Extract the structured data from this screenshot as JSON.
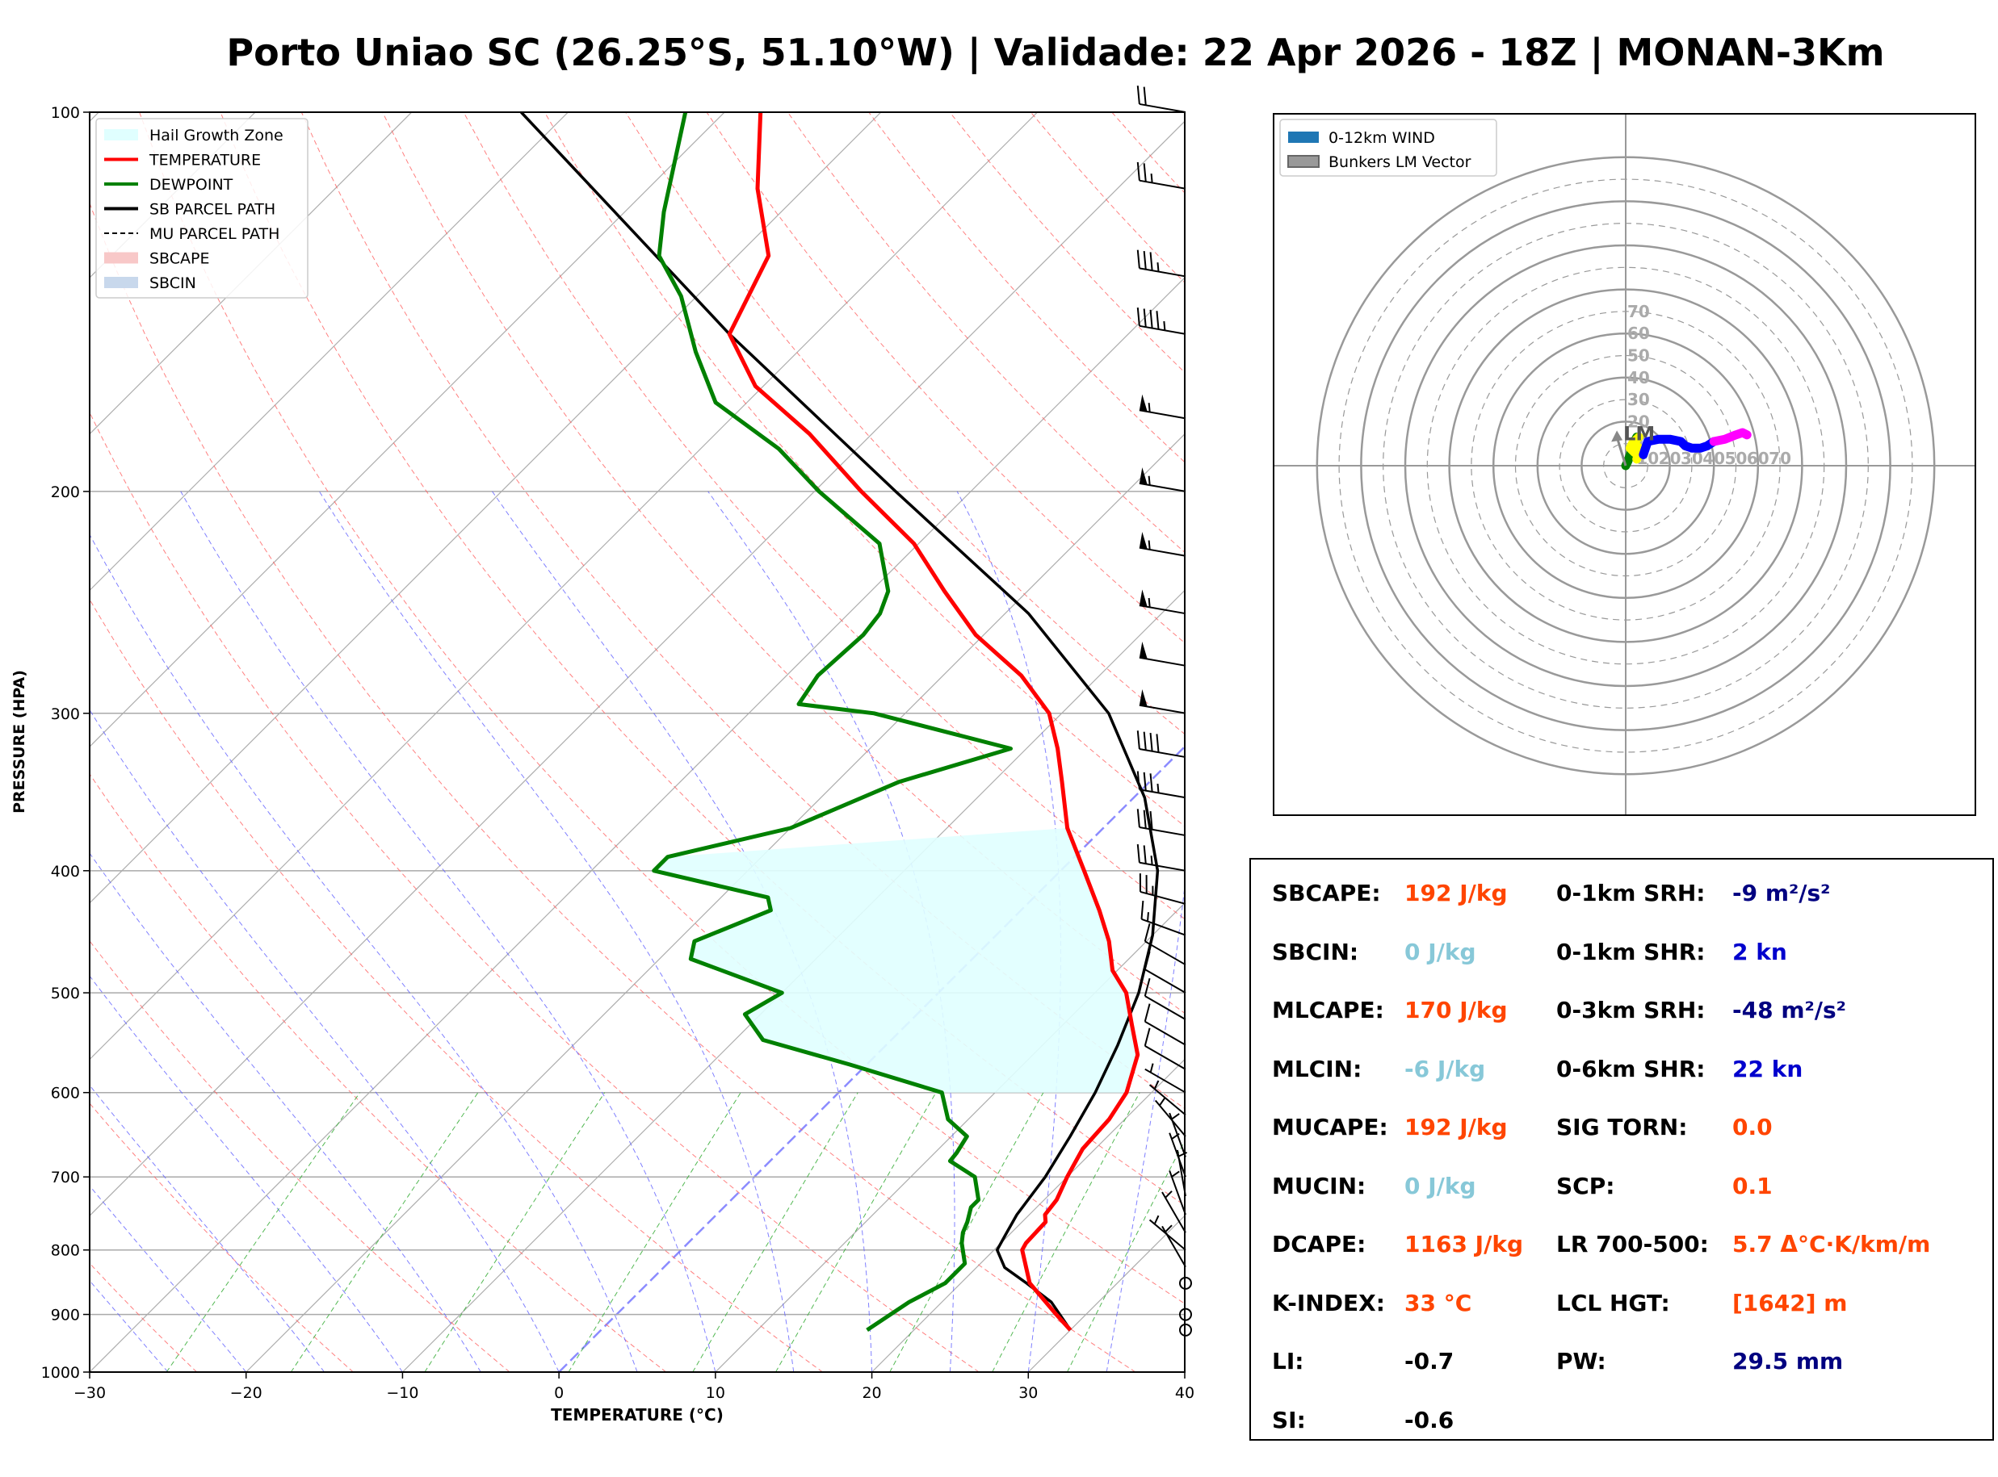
{
  "title": "Porto Uniao SC (26.25°S, 51.10°W) | Validade: 22 Apr 2026 - 18Z | MONAN-3Km",
  "colors": {
    "temperature": "#ff0000",
    "dewpoint": "#008000",
    "parcel": "#000000",
    "hail_zone": "#e0ffff",
    "dry_adiabat": "#ff6060",
    "moist_adiabat": "#6060ff",
    "mixing_ratio": "#40b040",
    "isotherm": "#999999",
    "freezing_line": "#8080ff",
    "value_orange": "#ff4500",
    "value_lightblue": "#87c8d8",
    "value_navy": "#000080",
    "value_blue": "#0000cd",
    "value_black": "#000000"
  },
  "skewt": {
    "xlabel": "TEMPERATURE (°C)",
    "ylabel": "PRESSURE (HPA)",
    "legend": [
      {
        "label": "Hail Growth Zone",
        "style": "fill",
        "color": "#e0ffff"
      },
      {
        "label": "TEMPERATURE",
        "style": "line",
        "color": "#ff0000"
      },
      {
        "label": "DEWPOINT",
        "style": "line",
        "color": "#008000"
      },
      {
        "label": "SB PARCEL PATH",
        "style": "line",
        "color": "#000000"
      },
      {
        "label": "MU PARCEL PATH",
        "style": "dash",
        "color": "#000000"
      },
      {
        "label": "SBCAPE",
        "style": "fill",
        "color": "#f8c8c8"
      },
      {
        "label": "SBCIN",
        "style": "fill",
        "color": "#c8d8ec"
      }
    ]
  },
  "hodograph": {
    "legend": [
      {
        "label": "0-12km WIND",
        "color": "#1f77b4"
      },
      {
        "label": "Bunkers LM Vector",
        "color": "#999999"
      }
    ],
    "ring_labels": [
      "10",
      "20",
      "30",
      "40",
      "50",
      "60",
      "70"
    ],
    "lm_label": "LM"
  },
  "params": {
    "left": [
      {
        "label": "SBCAPE:",
        "value": "192 J/kg",
        "color": "#ff4500"
      },
      {
        "label": "SBCIN:",
        "value": "0 J/kg",
        "color": "#87c8d8"
      },
      {
        "label": "MLCAPE:",
        "value": "170 J/kg",
        "color": "#ff4500"
      },
      {
        "label": "MLCIN:",
        "value": "-6 J/kg",
        "color": "#87c8d8"
      },
      {
        "label": "MUCAPE:",
        "value": "192 J/kg",
        "color": "#ff4500"
      },
      {
        "label": "MUCIN:",
        "value": "0 J/kg",
        "color": "#87c8d8"
      },
      {
        "label": "DCAPE:",
        "value": "1163 J/kg",
        "color": "#ff4500"
      },
      {
        "label": "K-INDEX:",
        "value": "33 °C",
        "color": "#ff4500"
      },
      {
        "label": "LI:",
        "value": "-0.7",
        "color": "#000000"
      },
      {
        "label": "SI:",
        "value": "-0.6",
        "color": "#000000"
      }
    ],
    "right": [
      {
        "label": "0-1km SRH:",
        "value": "-9 m²/s²",
        "color": "#000080"
      },
      {
        "label": "0-1km SHR:",
        "value": "2 kn",
        "color": "#0000cd"
      },
      {
        "label": "0-3km SRH:",
        "value": "-48 m²/s²",
        "color": "#000080"
      },
      {
        "label": "0-6km SHR:",
        "value": "22 kn",
        "color": "#0000cd"
      },
      {
        "label": "SIG TORN:",
        "value": "0.0",
        "color": "#ff4500"
      },
      {
        "label": "SCP:",
        "value": "0.1",
        "color": "#ff4500"
      },
      {
        "label": "LR 700-500:",
        "value": "5.7 Δ°C·K/km/m",
        "color": "#ff4500"
      },
      {
        "label": "LCL HGT:",
        "value": "[1642] m",
        "color": "#ff4500"
      },
      {
        "label": "PW:",
        "value": "29.5 mm",
        "color": "#000080"
      }
    ]
  },
  "chart_data": [
    {
      "type": "line",
      "title": "",
      "xlabel": "TEMPERATURE (°C)",
      "ylabel": "PRESSURE (HPA)",
      "xlim": [
        -30,
        40
      ],
      "ylim": [
        1000,
        100
      ],
      "y_scale": "log",
      "x_ticks": [
        "−30",
        "−20",
        "−10",
        "0",
        "10",
        "20",
        "30",
        "40"
      ],
      "y_ticks": [
        "100",
        "200",
        "300",
        "400",
        "500",
        "600",
        "700",
        "800",
        "900",
        "1000"
      ],
      "grid": true,
      "legend_position": "top-left",
      "series": [
        {
          "name": "TEMPERATURE",
          "pressure": [
            926,
            900,
            850,
            800,
            790,
            760,
            750,
            730,
            700,
            665,
            630,
            600,
            560,
            530,
            500,
            480,
            455,
            430,
            400,
            370,
            340,
            320,
            300,
            280,
            260,
            240,
            220,
            200,
            180,
            165,
            150,
            130,
            115,
            100
          ],
          "temp": [
            30,
            28.1,
            24.4,
            21.8,
            21.6,
            21.5,
            21,
            20.8,
            20,
            19.2,
            19,
            18.4,
            16.7,
            14.4,
            12,
            9.7,
            7.6,
            5,
            1.5,
            -2.3,
            -5.6,
            -8,
            -10.8,
            -15,
            -20.5,
            -25.3,
            -30.3,
            -37,
            -44,
            -50.5,
            -55.5,
            -58,
            -63,
            -67.7
          ]
        },
        {
          "name": "DEWPOINT",
          "pressure": [
            926,
            880,
            850,
            820,
            790,
            775,
            760,
            740,
            730,
            700,
            680,
            670,
            650,
            630,
            600,
            570,
            545,
            520,
            500,
            470,
            455,
            430,
            420,
            400,
            390,
            370,
            340,
            320,
            300,
            295,
            280,
            260,
            250,
            240,
            220,
            200,
            185,
            170,
            155,
            140,
            130,
            120,
            100
          ],
          "temp": [
            17,
            17.9,
            19,
            19,
            17.5,
            16.9,
            16.5,
            15.8,
            15.8,
            14.1,
            11.5,
            11.4,
            11,
            8.7,
            6.6,
            -1.1,
            -8.2,
            -11,
            -10,
            -18,
            -18.9,
            -16,
            -17,
            -26,
            -26,
            -20,
            -16,
            -11,
            -22,
            -27.4,
            -28,
            -27.7,
            -28,
            -28.9,
            -32.5,
            -39.7,
            -45,
            -52,
            -56.5,
            -61,
            -65,
            -67.5,
            -72.5
          ]
        },
        {
          "name": "SB PARCEL PATH",
          "pressure": [
            926,
            880,
            850,
            826,
            800,
            780,
            750,
            700,
            650,
            600,
            550,
            500,
            450,
            400,
            350,
            300,
            250,
            200,
            150,
            100
          ],
          "temp": [
            30,
            27,
            24.2,
            21.8,
            20.2,
            19.8,
            19.2,
            18.6,
            17.6,
            16.4,
            14.8,
            12.8,
            10,
            6.2,
            0.7,
            -7,
            -18.5,
            -34.8,
            -55.5,
            -83
          ]
        }
      ],
      "hail_growth_zone": {
        "top_hpa": 370,
        "bottom_hpa": 600,
        "temp_range_c": [
          -30,
          -10
        ]
      },
      "wind_barbs": [
        {
          "p": 926,
          "spd_kn": 0
        },
        {
          "p": 900,
          "spd_kn": 0
        },
        {
          "p": 850,
          "spd_kn": 0
        },
        {
          "p": 825,
          "spd_kn": 5,
          "dir": 330
        },
        {
          "p": 800,
          "spd_kn": 5,
          "dir": 310
        },
        {
          "p": 775,
          "spd_kn": 5,
          "dir": 330
        },
        {
          "p": 750,
          "spd_kn": 5,
          "dir": 340
        },
        {
          "p": 725,
          "spd_kn": 5,
          "dir": 350
        },
        {
          "p": 700,
          "spd_kn": 5,
          "dir": 340
        },
        {
          "p": 675,
          "spd_kn": 5,
          "dir": 340
        },
        {
          "p": 650,
          "spd_kn": 5,
          "dir": 320
        },
        {
          "p": 625,
          "spd_kn": 5,
          "dir": 310
        },
        {
          "p": 600,
          "spd_kn": 5,
          "dir": 300
        },
        {
          "p": 575,
          "spd_kn": 10,
          "dir": 300
        },
        {
          "p": 550,
          "spd_kn": 10,
          "dir": 300
        },
        {
          "p": 525,
          "spd_kn": 10,
          "dir": 300
        },
        {
          "p": 500,
          "spd_kn": 10,
          "dir": 300
        },
        {
          "p": 475,
          "spd_kn": 10,
          "dir": 300
        },
        {
          "p": 450,
          "spd_kn": 15,
          "dir": 290
        },
        {
          "p": 425,
          "spd_kn": 25,
          "dir": 285
        },
        {
          "p": 400,
          "spd_kn": 25,
          "dir": 280
        },
        {
          "p": 375,
          "spd_kn": 30,
          "dir": 280
        },
        {
          "p": 350,
          "spd_kn": 35,
          "dir": 280
        },
        {
          "p": 325,
          "spd_kn": 40,
          "dir": 280
        },
        {
          "p": 300,
          "spd_kn": 50,
          "dir": 280
        },
        {
          "p": 275,
          "spd_kn": 50,
          "dir": 280
        },
        {
          "p": 250,
          "spd_kn": 55,
          "dir": 280
        },
        {
          "p": 225,
          "spd_kn": 55,
          "dir": 280
        },
        {
          "p": 200,
          "spd_kn": 55,
          "dir": 280
        },
        {
          "p": 175,
          "spd_kn": 55,
          "dir": 280
        },
        {
          "p": 150,
          "spd_kn": 45,
          "dir": 280
        },
        {
          "p": 135,
          "spd_kn": 35,
          "dir": 280
        },
        {
          "p": 115,
          "spd_kn": 25,
          "dir": 280
        },
        {
          "p": 100,
          "spd_kn": 20,
          "dir": 280
        }
      ]
    },
    {
      "type": "line",
      "title": "",
      "ring_labels": [
        10,
        20,
        30,
        40,
        50,
        60,
        70
      ],
      "xlim": [
        -80,
        80
      ],
      "ylim": [
        -80,
        80
      ],
      "grid": true,
      "legend_position": "top-left",
      "series": [
        {
          "name": "0-12km WIND",
          "segments": [
            {
              "color": "#008000",
              "u": [
                0,
                1,
                2,
                3,
                4,
                5,
                6
              ],
              "v": [
                0,
                2,
                5,
                8,
                11,
                13,
                13
              ]
            },
            {
              "color": "#ffff00",
              "u": [
                6,
                3,
                2,
                4,
                6,
                5
              ],
              "v": [
                13,
                10,
                8,
                6,
                5,
                3
              ]
            },
            {
              "color": "#ffff00",
              "u": [
                5,
                7,
                5,
                8
              ],
              "v": [
                9,
                7,
                5,
                5
              ]
            },
            {
              "color": "#0000ff",
              "u": [
                8,
                10,
                15,
                20,
                25,
                27,
                30,
                34,
                37,
                40
              ],
              "v": [
                5,
                11,
                12,
                12,
                11,
                9,
                8,
                8,
                9,
                11
              ]
            },
            {
              "color": "#ff00ff",
              "u": [
                40,
                45,
                50,
                53,
                55
              ],
              "v": [
                11,
                12,
                14,
                15,
                14
              ]
            }
          ]
        },
        {
          "name": "Bunkers LM Vector",
          "u": [
            0,
            -4
          ],
          "v": [
            0,
            16
          ]
        }
      ]
    }
  ]
}
